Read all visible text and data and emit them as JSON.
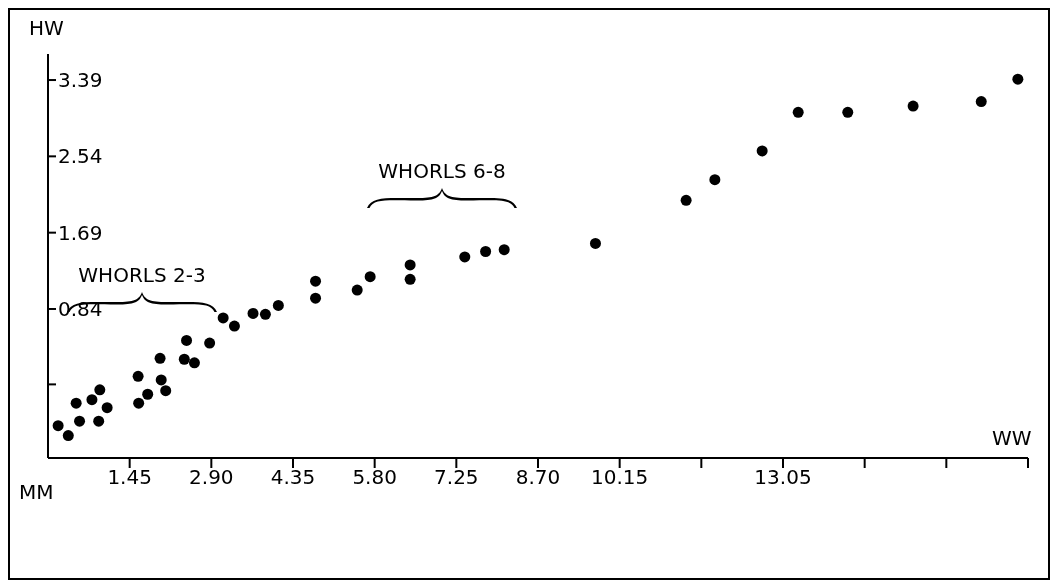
{
  "chart_data": {
    "type": "scatter",
    "xlabel": "WW",
    "ylabel": "HW",
    "marker": "circle",
    "grid": false,
    "legend": false,
    "x": [
      0.18,
      0.36,
      0.5,
      0.56,
      0.78,
      0.92,
      0.9,
      1.05,
      1.6,
      1.61,
      1.77,
      1.99,
      2.01,
      2.09,
      2.42,
      2.46,
      2.6,
      2.87,
      3.11,
      3.31,
      3.64,
      3.86,
      4.09,
      4.75,
      4.75,
      5.49,
      5.72,
      6.43,
      6.43,
      7.4,
      7.77,
      8.1,
      9.72,
      11.33,
      11.84,
      12.68,
      13.32,
      14.2,
      15.36,
      16.57,
      17.22
    ],
    "series": [
      {
        "color": "#000000",
        "values": [
          -0.46,
          -0.57,
          -0.21,
          -0.41,
          -0.17,
          -0.06,
          -0.41,
          -0.26,
          0.09,
          -0.21,
          -0.11,
          0.29,
          0.05,
          -0.07,
          0.28,
          0.49,
          0.24,
          0.46,
          0.74,
          0.65,
          0.79,
          0.78,
          0.88,
          0.96,
          1.15,
          1.05,
          1.2,
          1.33,
          1.17,
          1.42,
          1.48,
          1.5,
          1.57,
          2.05,
          2.28,
          2.6,
          3.03,
          3.03,
          3.1,
          3.15,
          3.4
        ]
      }
    ],
    "xlim": [
      0,
      17.4
    ],
    "xticks": [
      1.45,
      {
        "value": 2.9,
        "label": "2.90"
      },
      4.35,
      {
        "value": 5.8,
        "label": "5.80"
      },
      7.25,
      {
        "value": 8.7,
        "label": "8.70"
      },
      10.15,
      {
        "value": 11.6,
        "label": null
      },
      13.05,
      {
        "value": 14.5,
        "label": null
      },
      {
        "value": 15.95,
        "label": null
      },
      {
        "value": 17.4,
        "label": null
      }
    ],
    "ylim": [
      -0.82,
      3.68
    ],
    "yticks": [
      {
        "value": 0,
        "label": null
      },
      0.84,
      1.69,
      2.54,
      3.39
    ],
    "annotations": [
      "MM",
      "WHORLS 2-3",
      "WHORLS 6-8"
    ]
  }
}
